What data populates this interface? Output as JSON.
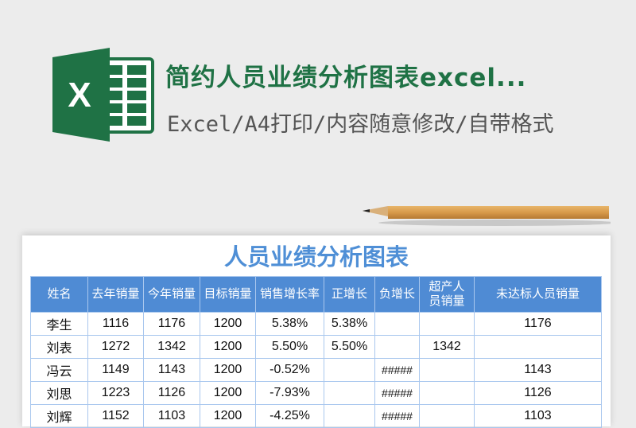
{
  "header": {
    "title": "简约人员业绩分析图表excel...",
    "subtitle": "Excel/A4打印/内容随意修改/自带格式",
    "logo_letter": "X"
  },
  "sheet": {
    "title": "人员业绩分析图表",
    "columns": [
      "姓名",
      "去年销量",
      "今年销量",
      "目标销量",
      "销售增长率",
      "正增长",
      "负增长",
      "超产人员销量",
      "未达标人员销量"
    ],
    "rows": [
      [
        "李生",
        "1116",
        "1176",
        "1200",
        "5.38%",
        "5.38%",
        "",
        "",
        "1176"
      ],
      [
        "刘表",
        "1272",
        "1342",
        "1200",
        "5.50%",
        "5.50%",
        "",
        "1342",
        ""
      ],
      [
        "冯云",
        "1149",
        "1143",
        "1200",
        "-0.52%",
        "",
        "#####",
        "",
        "1143"
      ],
      [
        "刘思",
        "1223",
        "1126",
        "1200",
        "-7.93%",
        "",
        "#####",
        "",
        "1126"
      ],
      [
        "刘辉",
        "1152",
        "1103",
        "1200",
        "-4.25%",
        "",
        "#####",
        "",
        "1103"
      ]
    ]
  },
  "colors": {
    "brand_green": "#1f7245",
    "header_blue": "#4f8bd4",
    "title_blue": "#4f8fd6"
  }
}
